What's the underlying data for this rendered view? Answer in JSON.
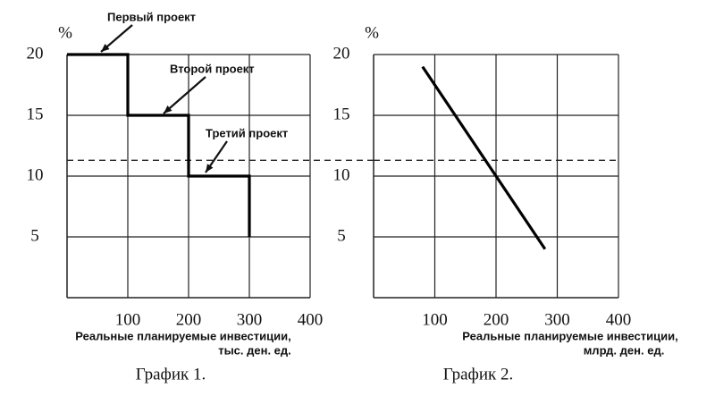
{
  "chart_data": [
    {
      "type": "line",
      "y_label": "%",
      "x_label": [
        "Реальные планируемые инвестиции,",
        "тыс. ден. ед."
      ],
      "caption": "График 1.",
      "series": [
        {
          "color": "#000000",
          "x": [
            0,
            100,
            100,
            200,
            200,
            300,
            300
          ],
          "values": [
            20,
            20,
            15,
            15,
            10,
            10,
            5
          ]
        }
      ],
      "annotations": [
        "Первый проект",
        "Второй проект",
        "Третий проект"
      ],
      "xlim": [
        0,
        400
      ],
      "xticks": [
        100,
        200,
        300,
        400
      ],
      "ylim": [
        0,
        20
      ],
      "yticks": [
        5,
        10,
        15,
        20
      ],
      "grid": true,
      "hline": 11.3
    },
    {
      "type": "line",
      "y_label": "%",
      "x_label": [
        "Реальные планируемые инвестиции,",
        "млрд. ден. ед."
      ],
      "caption": "График 2.",
      "series": [
        {
          "color": "#000000",
          "x": [
            80,
            280
          ],
          "values": [
            19,
            4
          ]
        }
      ],
      "xlim": [
        0,
        400
      ],
      "xticks": [
        100,
        200,
        300,
        400
      ],
      "ylim": [
        0,
        20
      ],
      "yticks": [
        5,
        10,
        15,
        20
      ],
      "grid": true,
      "hline": 11.3
    }
  ]
}
